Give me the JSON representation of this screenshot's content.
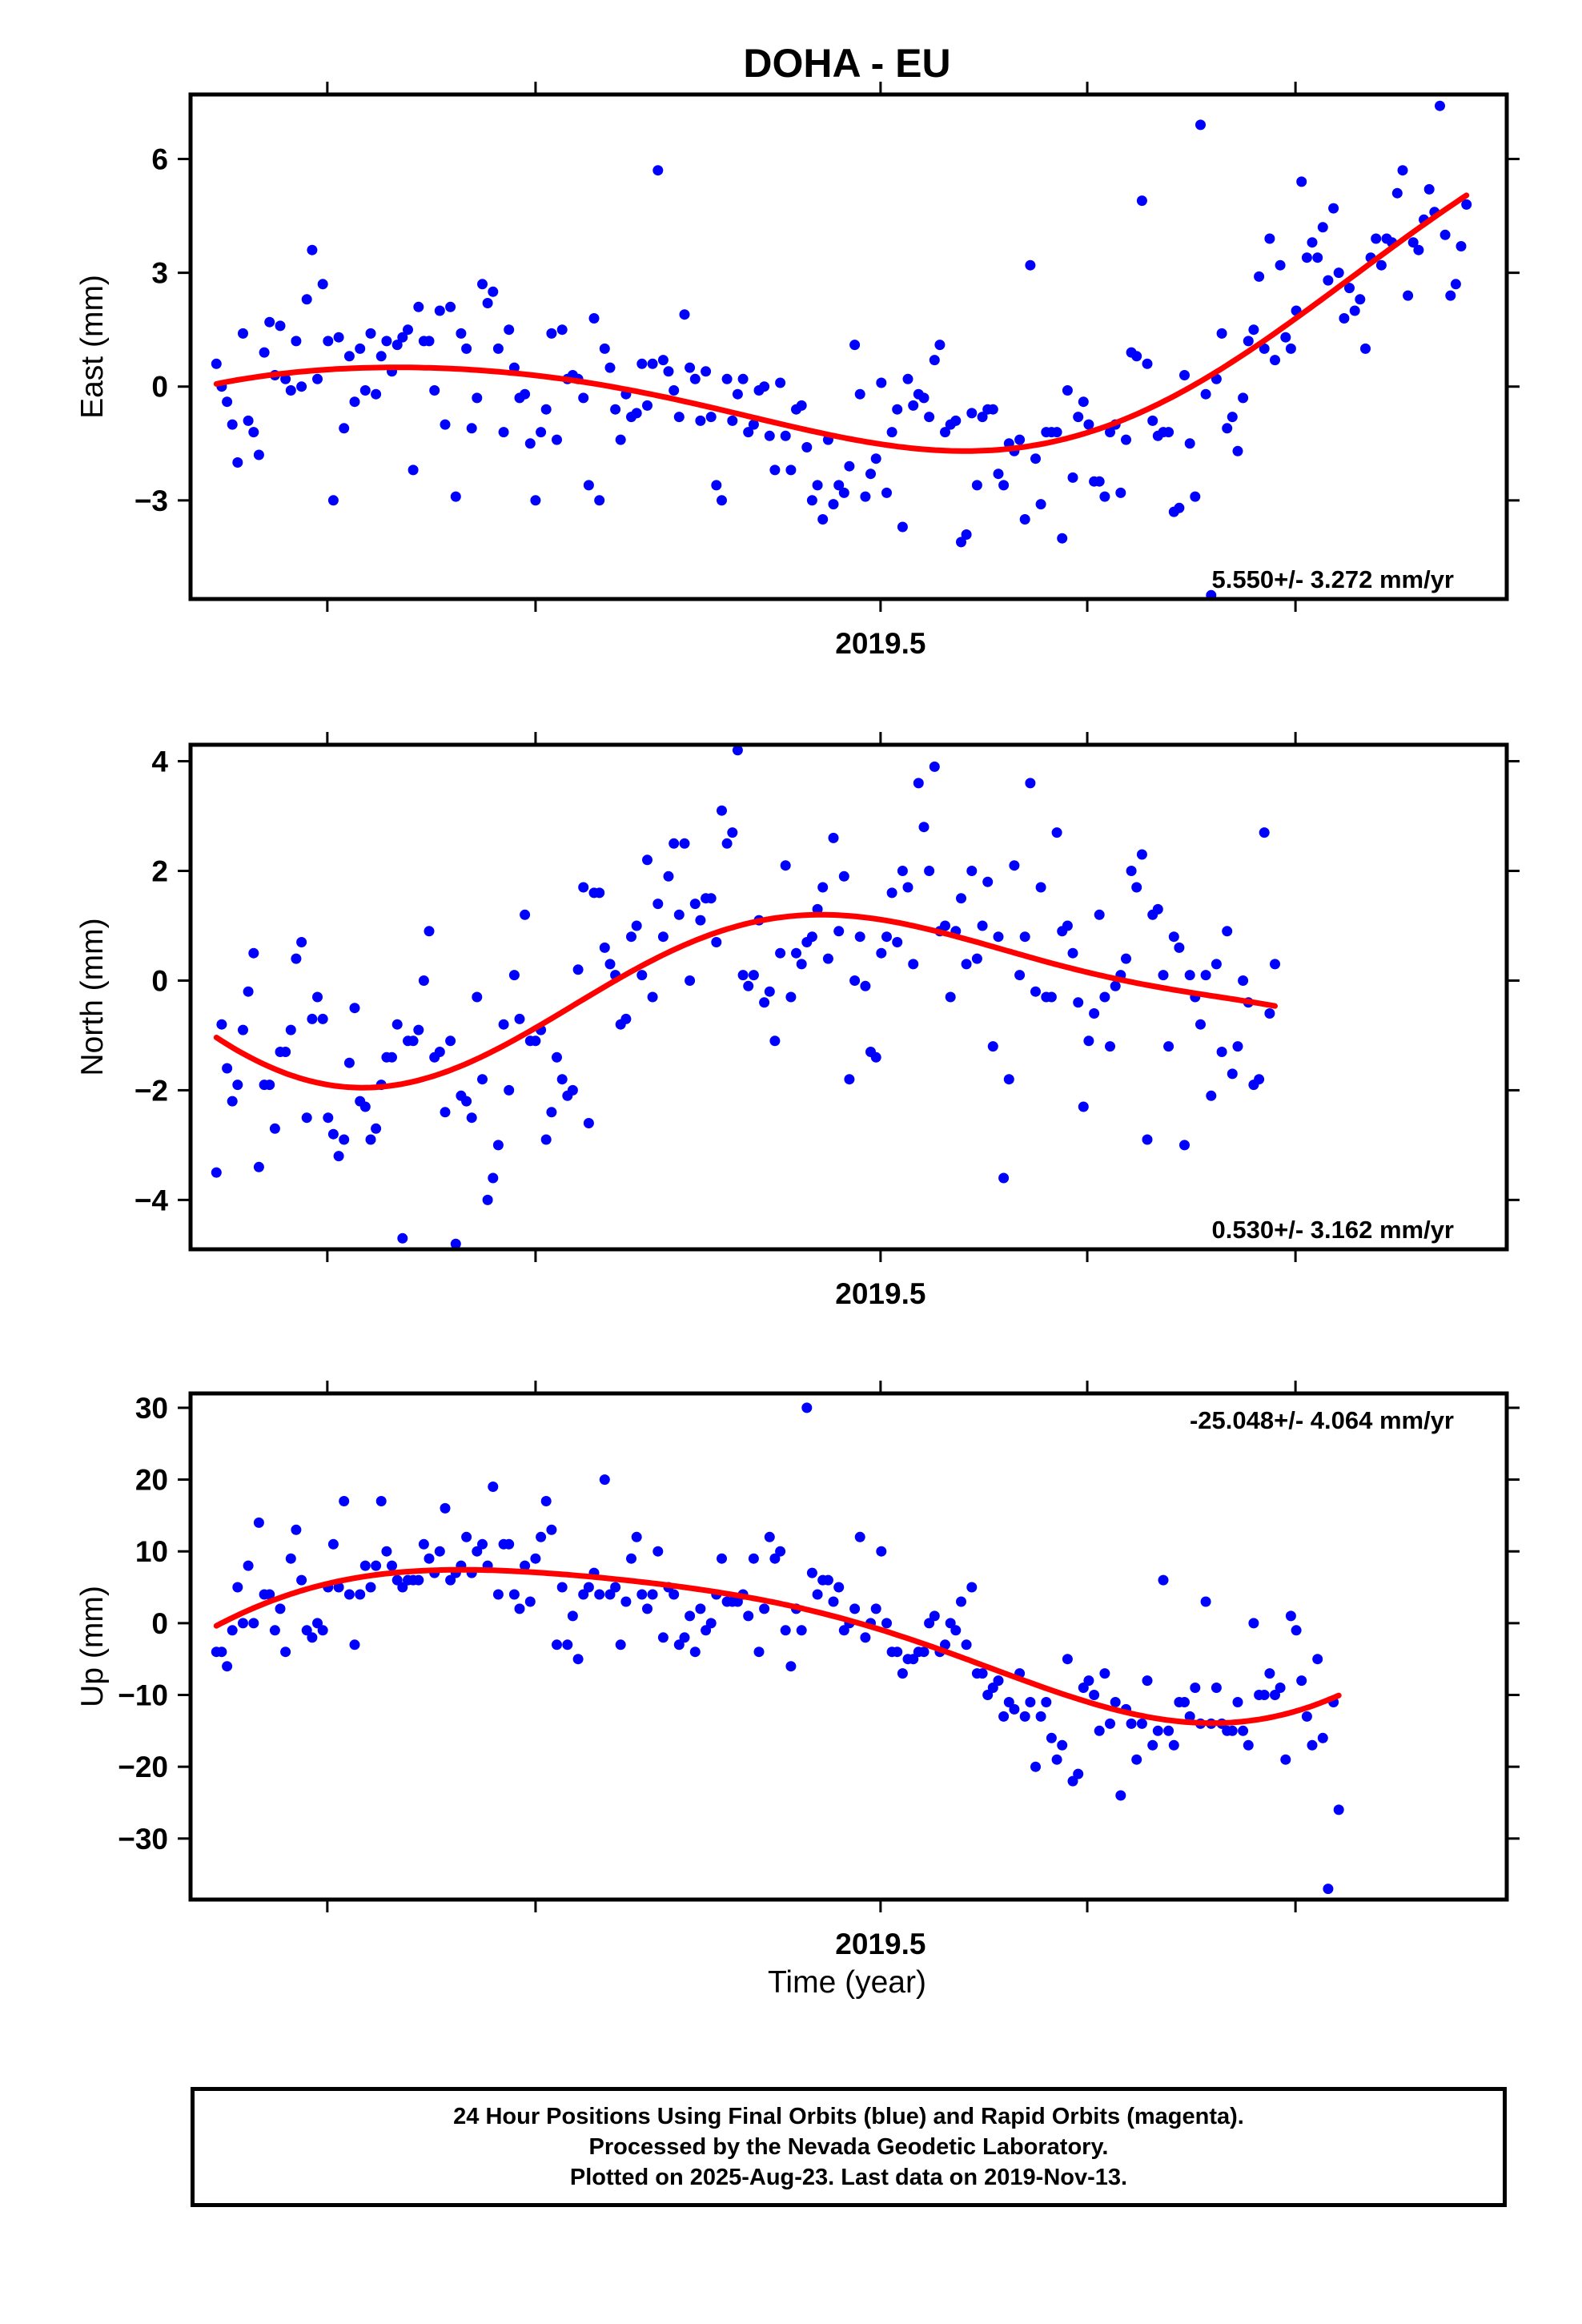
{
  "title": "DOHA - EU",
  "xlabel": "Time (year)",
  "colors": {
    "points": "#0000ff",
    "fit": "#ff0000",
    "frame": "#000000"
  },
  "footer": {
    "line1": "24 Hour Positions Using Final Orbits (blue) and Rapid Orbits (magenta).",
    "line2": "Processed by the Nevada Geodetic Laboratory.",
    "line3": "Plotted on 2025-Aug-23. Last data on 2019-Nov-13."
  },
  "chart_data": [
    {
      "type": "scatter",
      "ylabel": "East (mm)",
      "rate_label": "5.550+/- 3.272 mm/yr",
      "rate_position": "bottom-right",
      "xlim": [
        2019.046,
        2019.912
      ],
      "ylim": [
        -5.6,
        7.7
      ],
      "x_ticks": [
        2019.5
      ],
      "x_minor_ticks": [
        2019.136,
        2019.273,
        2019.636,
        2019.773
      ],
      "y_ticks": [
        -3,
        0,
        3,
        6
      ],
      "x_start": 2019.063,
      "x_step": 0.0035,
      "values": [
        0.6,
        0.0,
        -0.4,
        -1.0,
        -2.0,
        1.4,
        -0.9,
        -1.2,
        -1.8,
        0.9,
        1.7,
        0.3,
        1.6,
        0.2,
        -0.1,
        1.2,
        0.0,
        2.3,
        3.6,
        0.2,
        2.7,
        1.2,
        -3.0,
        1.3,
        -1.1,
        0.8,
        -0.4,
        1.0,
        -0.1,
        1.4,
        -0.2,
        0.8,
        1.2,
        0.4,
        1.1,
        1.3,
        1.5,
        -2.2,
        2.1,
        1.2,
        1.2,
        -0.1,
        2.0,
        -1.0,
        2.1,
        -2.9,
        1.4,
        1.0,
        -1.1,
        -0.3,
        2.7,
        2.2,
        2.5,
        1.0,
        -1.2,
        1.5,
        0.5,
        -0.3,
        -0.2,
        -1.5,
        -3.0,
        -1.2,
        -0.6,
        1.4,
        -1.4,
        1.5,
        0.2,
        0.3,
        0.2,
        -0.3,
        -2.6,
        1.8,
        -3.0,
        1.0,
        0.5,
        -0.6,
        -1.4,
        -0.2,
        -0.8,
        -0.7,
        0.6,
        -0.5,
        0.6,
        5.7,
        0.7,
        0.4,
        -0.1,
        -0.8,
        1.9,
        0.5,
        0.2,
        -0.9,
        0.4,
        -0.8,
        -2.6,
        -3.0,
        0.2,
        -0.9,
        -0.2,
        0.2,
        -1.2,
        -1.0,
        -0.1,
        0.0,
        -1.3,
        -2.2,
        0.1,
        -1.3,
        -2.2,
        -0.6,
        -0.5,
        -1.6,
        -3.0,
        -2.6,
        -3.5,
        -1.4,
        -3.1,
        -2.6,
        -2.8,
        -2.1,
        1.1,
        -0.2,
        -2.9,
        -2.3,
        -1.9,
        0.1,
        -2.8,
        -1.2,
        -0.6,
        -3.7,
        0.2,
        -0.5,
        -0.2,
        -0.3,
        -0.8,
        0.7,
        1.1,
        -1.2,
        -1.0,
        -0.9,
        -4.1,
        -3.9,
        -0.7,
        -2.6,
        -0.8,
        -0.6,
        -0.6,
        -2.3,
        -2.6,
        -1.5,
        -1.7,
        -1.4,
        -3.5,
        3.2,
        -1.9,
        -3.1,
        -1.2,
        -1.2,
        -1.2,
        -4.0,
        -0.1,
        -2.4,
        -0.8,
        -0.4,
        -1.0,
        -2.5,
        -2.5,
        -2.9,
        -1.2,
        -1.0,
        -2.8,
        -1.4,
        0.9,
        0.8,
        4.9,
        0.6,
        -0.9,
        -1.3,
        -1.2,
        -1.2,
        -3.3,
        -3.2,
        0.3,
        -1.5,
        -2.9,
        6.9,
        -0.2,
        -5.5,
        0.2,
        1.4,
        -1.1,
        -0.8,
        -1.7,
        -0.3,
        1.2,
        1.5,
        2.9,
        1.0,
        3.9,
        0.7,
        3.2,
        1.3,
        1.0,
        2.0,
        5.4,
        3.4,
        3.8,
        3.4,
        4.2,
        2.8,
        4.7,
        3.0,
        1.8,
        2.6,
        2.0,
        2.3,
        1.0,
        3.4,
        3.9,
        3.2,
        3.9,
        3.8,
        5.1,
        5.7,
        2.4,
        3.8,
        3.6,
        4.4,
        5.2,
        4.6,
        7.4,
        4.0,
        2.4,
        2.7,
        3.7,
        4.8
      ]
    },
    {
      "type": "scatter",
      "ylabel": "North (mm)",
      "rate_label": "0.530+/- 3.162 mm/yr",
      "rate_position": "bottom-right",
      "xlim": [
        2019.046,
        2019.912
      ],
      "ylim": [
        -4.9,
        4.3
      ],
      "x_ticks": [
        2019.5
      ],
      "x_minor_ticks": [
        2019.136,
        2019.273,
        2019.636,
        2019.773
      ],
      "y_ticks": [
        -4,
        -2,
        0,
        2,
        4
      ],
      "x_start": 2019.063,
      "x_step": 0.0035,
      "values": [
        -3.5,
        -0.8,
        -1.6,
        -2.2,
        -1.9,
        -0.9,
        -0.2,
        0.5,
        -3.4,
        -1.9,
        -1.9,
        -2.7,
        -1.3,
        -1.3,
        -0.9,
        0.4,
        0.7,
        -2.5,
        -0.7,
        -0.3,
        -0.7,
        -2.5,
        -2.8,
        -3.2,
        -2.9,
        -1.5,
        -0.5,
        -2.2,
        -2.3,
        -2.9,
        -2.7,
        -1.9,
        -1.4,
        -1.4,
        -0.8,
        -4.7,
        -1.1,
        -1.1,
        -0.9,
        0.0,
        0.9,
        -1.4,
        -1.3,
        -2.4,
        -1.1,
        -4.8,
        -2.1,
        -2.2,
        -2.5,
        -0.3,
        -1.8,
        -4.0,
        -3.6,
        -3.0,
        -0.8,
        -2.0,
        0.1,
        -0.7,
        1.2,
        -1.1,
        -1.1,
        -0.9,
        -2.9,
        -2.4,
        -1.4,
        -1.8,
        -2.1,
        -2.0,
        0.2,
        1.7,
        -2.6,
        1.6,
        1.6,
        0.6,
        0.3,
        0.1,
        -0.8,
        -0.7,
        0.8,
        1.0,
        0.1,
        2.2,
        -0.3,
        1.4,
        0.8,
        1.9,
        2.5,
        1.2,
        2.5,
        0.0,
        1.4,
        1.1,
        1.5,
        1.5,
        0.7,
        3.1,
        2.5,
        2.7,
        4.2,
        0.1,
        -0.1,
        0.1,
        1.1,
        -0.4,
        -0.2,
        -1.1,
        0.5,
        2.1,
        -0.3,
        0.5,
        0.3,
        0.7,
        0.8,
        1.3,
        1.7,
        0.4,
        2.6,
        0.9,
        1.9,
        -1.8,
        0.0,
        0.8,
        -0.1,
        -1.3,
        -1.4,
        0.5,
        0.8,
        1.6,
        0.7,
        2.0,
        1.7,
        0.3,
        3.6,
        2.8,
        2.0,
        3.9,
        0.9,
        1.0,
        -0.3,
        0.9,
        1.5,
        0.3,
        2.0,
        0.4,
        1.0,
        1.8,
        -1.2,
        0.8,
        -3.6,
        -1.8,
        2.1,
        0.1,
        0.8,
        3.6,
        -0.2,
        1.7,
        -0.3,
        -0.3,
        2.7,
        0.9,
        1.0,
        0.5,
        -0.4,
        -2.3,
        -1.1,
        -0.6,
        1.2,
        -0.3,
        -1.2,
        -0.1,
        0.1,
        0.4,
        2.0,
        1.7,
        2.3,
        -2.9,
        1.2,
        1.3,
        0.1,
        -1.2,
        0.8,
        0.6,
        -3.0,
        0.1,
        -0.3,
        -0.8,
        0.1,
        -2.1,
        0.3,
        -1.3,
        0.9,
        -1.7,
        -1.2,
        0.0,
        -0.4,
        -1.9,
        -1.8,
        2.7,
        -0.6,
        0.3
      ]
    },
    {
      "type": "scatter",
      "ylabel": "Up (mm)",
      "rate_label": "-25.048+/- 4.064 mm/yr",
      "rate_position": "top-right",
      "xlim": [
        2019.046,
        2019.912
      ],
      "ylim": [
        -38.5,
        32.0
      ],
      "x_ticks": [
        2019.5
      ],
      "x_minor_ticks": [
        2019.136,
        2019.273,
        2019.636,
        2019.773
      ],
      "y_ticks": [
        -30,
        -20,
        -10,
        0,
        10,
        20,
        30
      ],
      "x_start": 2019.063,
      "x_step": 0.0035,
      "values": [
        -4,
        -4,
        -6,
        -1,
        5,
        0,
        8,
        0,
        14,
        4,
        4,
        -1,
        2,
        -4,
        9,
        13,
        6,
        -1,
        -2,
        0,
        -1,
        5,
        11,
        5,
        17,
        4,
        -3,
        4,
        8,
        5,
        8,
        17,
        10,
        8,
        6,
        5,
        6,
        6,
        6,
        11,
        9,
        7,
        10,
        16,
        6,
        7,
        8,
        12,
        7,
        10,
        11,
        8,
        19,
        4,
        11,
        11,
        4,
        2,
        8,
        3,
        9,
        12,
        17,
        13,
        -3,
        5,
        -3,
        1,
        -5,
        4,
        5,
        7,
        4,
        20,
        4,
        5,
        -3,
        3,
        9,
        12,
        4,
        2,
        4,
        10,
        -2,
        5,
        4,
        -3,
        -2,
        1,
        -4,
        2,
        -1,
        0,
        4,
        9,
        3,
        3,
        3,
        4,
        1,
        9,
        -4,
        2,
        12,
        9,
        10,
        -1,
        -6,
        2,
        -1,
        30,
        7,
        4,
        6,
        6,
        3,
        5,
        -1,
        0,
        2,
        12,
        -2,
        0,
        2,
        10,
        0,
        -4,
        -4,
        -7,
        -5,
        -5,
        -4,
        -4,
        0,
        1,
        -4,
        -3,
        0,
        -1,
        3,
        -3,
        5,
        -7,
        -7,
        -10,
        -9,
        -8,
        -13,
        -11,
        -12,
        -7,
        -13,
        -11,
        -20,
        -13,
        -11,
        -16,
        -19,
        -17,
        -5,
        -22,
        -21,
        -9,
        -8,
        -10,
        -15,
        -7,
        -14,
        -11,
        -24,
        -12,
        -14,
        -19,
        -14,
        -8,
        -17,
        -15,
        6,
        -15,
        -17,
        -11,
        -11,
        -13,
        -9,
        -14,
        3,
        -14,
        -9,
        -14,
        -15,
        -15,
        -11,
        -15,
        -17,
        0,
        -10,
        -10,
        -7,
        -10,
        -9,
        -19,
        1,
        -1,
        -8,
        -13,
        -17,
        -5,
        -16,
        -37,
        -11,
        -26
      ]
    }
  ]
}
